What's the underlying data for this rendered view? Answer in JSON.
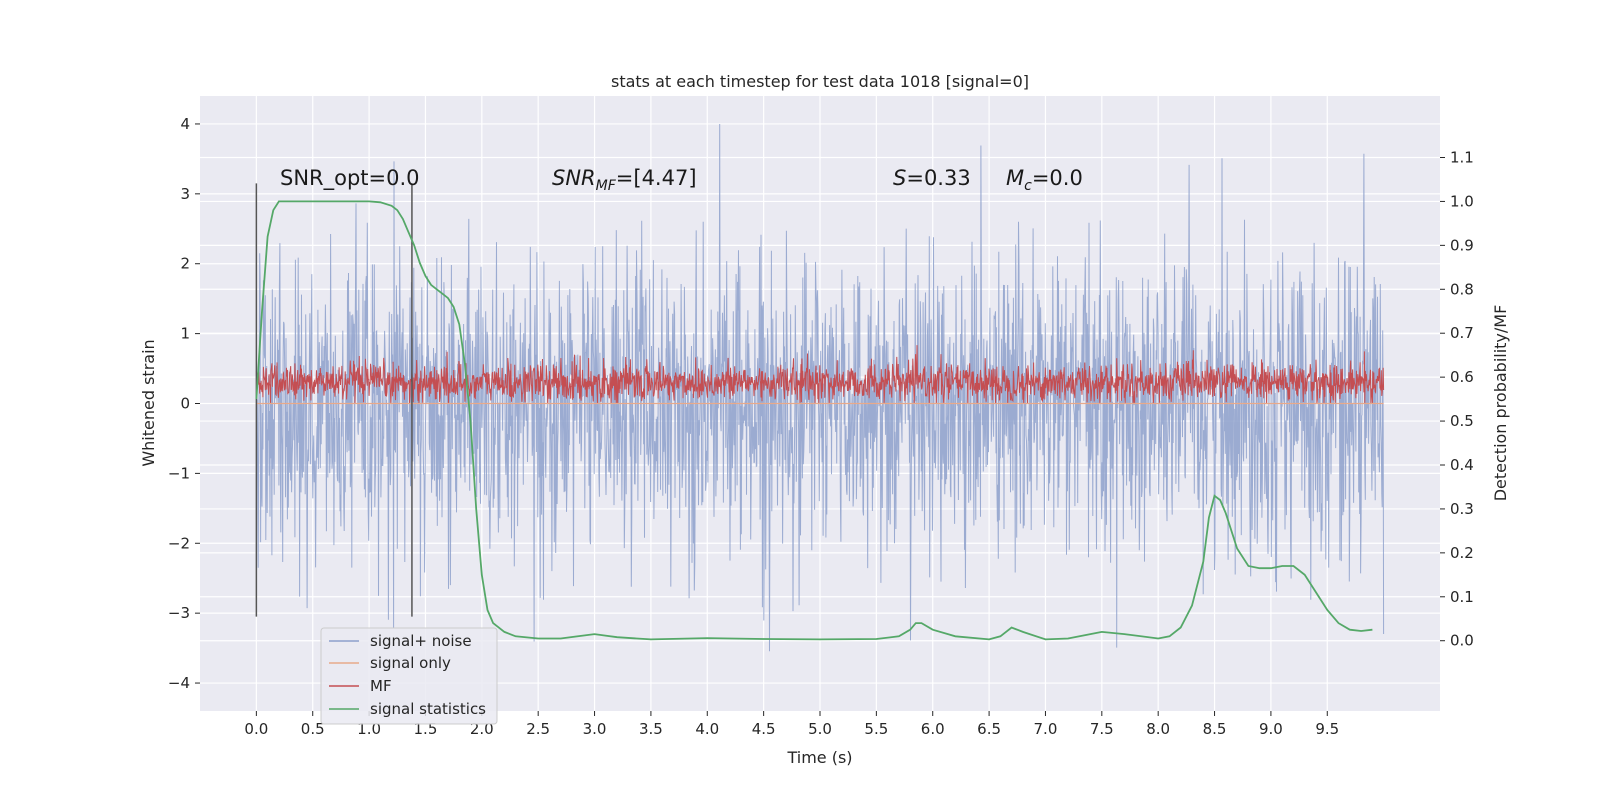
{
  "chart_data": {
    "type": "line",
    "title": "stats at each timestep for test data 1018 [signal=0]",
    "xlabel": "Time (s)",
    "ylabel": "Whitened strain",
    "y2label": "Detection probability/MF",
    "xlim": [
      -0.5,
      10.5
    ],
    "ylim": [
      -4.4,
      4.4
    ],
    "y2lim": [
      -0.16,
      1.24
    ],
    "x_ticks": [
      "0.0",
      "0.5",
      "1.0",
      "1.5",
      "2.0",
      "2.5",
      "3.0",
      "3.5",
      "4.0",
      "4.5",
      "5.0",
      "5.5",
      "6.0",
      "6.5",
      "7.0",
      "7.5",
      "8.0",
      "8.5",
      "9.0",
      "9.5"
    ],
    "y_ticks": [
      "4",
      "3",
      "2",
      "1",
      "0",
      "−1",
      "−2",
      "−3",
      "−4"
    ],
    "y2_ticks": [
      "1.1",
      "1.0",
      "0.9",
      "0.8",
      "0.7",
      "0.6",
      "0.5",
      "0.4",
      "0.3",
      "0.2",
      "0.1",
      "0.0"
    ],
    "grid": true,
    "legend_position": "lower-left",
    "annotations": {
      "snr_opt": "SNR_opt=0.0",
      "snr_mf": "=[4.47]",
      "s_value": "=0.33",
      "mc_value": "=0.0"
    },
    "vertical_lines_x": [
      0.0,
      1.38
    ],
    "series": [
      {
        "name": "signal+ noise",
        "color": "#8da0cb",
        "axis": "left",
        "description": "whitened strain noise trace spanning roughly -3.5 to 4.0",
        "x_range": [
          0.0,
          10.0
        ],
        "approx_range": [
          -3.6,
          4.0
        ]
      },
      {
        "name": "signal only",
        "color": "#e8a98a",
        "axis": "left",
        "x": [
          0.0,
          10.0
        ],
        "values": [
          0.0,
          0.0
        ]
      },
      {
        "name": "MF",
        "color": "#c44e52",
        "axis": "left",
        "x_range": [
          0.0,
          10.0
        ],
        "approx_range": [
          0.0,
          0.85
        ]
      },
      {
        "name": "signal statistics",
        "color": "#55a868",
        "axis": "right",
        "x": [
          0.0,
          0.05,
          0.1,
          0.15,
          0.2,
          0.3,
          0.5,
          0.8,
          1.0,
          1.1,
          1.2,
          1.25,
          1.3,
          1.35,
          1.4,
          1.45,
          1.5,
          1.55,
          1.6,
          1.65,
          1.7,
          1.75,
          1.8,
          1.85,
          1.9,
          1.95,
          2.0,
          2.05,
          2.1,
          2.2,
          2.3,
          2.5,
          2.7,
          3.0,
          3.2,
          3.5,
          4.0,
          4.5,
          5.0,
          5.5,
          5.7,
          5.8,
          5.85,
          5.9,
          6.0,
          6.2,
          6.5,
          6.6,
          6.7,
          6.8,
          7.0,
          7.2,
          7.5,
          7.7,
          8.0,
          8.1,
          8.2,
          8.3,
          8.4,
          8.45,
          8.5,
          8.55,
          8.6,
          8.7,
          8.8,
          8.9,
          9.0,
          9.1,
          9.2,
          9.3,
          9.4,
          9.5,
          9.6,
          9.7,
          9.8,
          9.9
        ],
        "values": [
          0.55,
          0.75,
          0.92,
          0.98,
          1.0,
          1.0,
          1.0,
          1.0,
          1.0,
          0.998,
          0.99,
          0.98,
          0.96,
          0.93,
          0.9,
          0.86,
          0.83,
          0.81,
          0.8,
          0.79,
          0.78,
          0.76,
          0.72,
          0.63,
          0.5,
          0.3,
          0.15,
          0.07,
          0.04,
          0.02,
          0.01,
          0.005,
          0.005,
          0.015,
          0.008,
          0.003,
          0.006,
          0.004,
          0.003,
          0.004,
          0.01,
          0.025,
          0.04,
          0.04,
          0.025,
          0.01,
          0.003,
          0.01,
          0.03,
          0.02,
          0.003,
          0.005,
          0.02,
          0.015,
          0.005,
          0.01,
          0.03,
          0.08,
          0.18,
          0.28,
          0.33,
          0.32,
          0.29,
          0.21,
          0.17,
          0.165,
          0.165,
          0.17,
          0.17,
          0.15,
          0.11,
          0.07,
          0.04,
          0.025,
          0.022,
          0.025
        ]
      }
    ]
  }
}
